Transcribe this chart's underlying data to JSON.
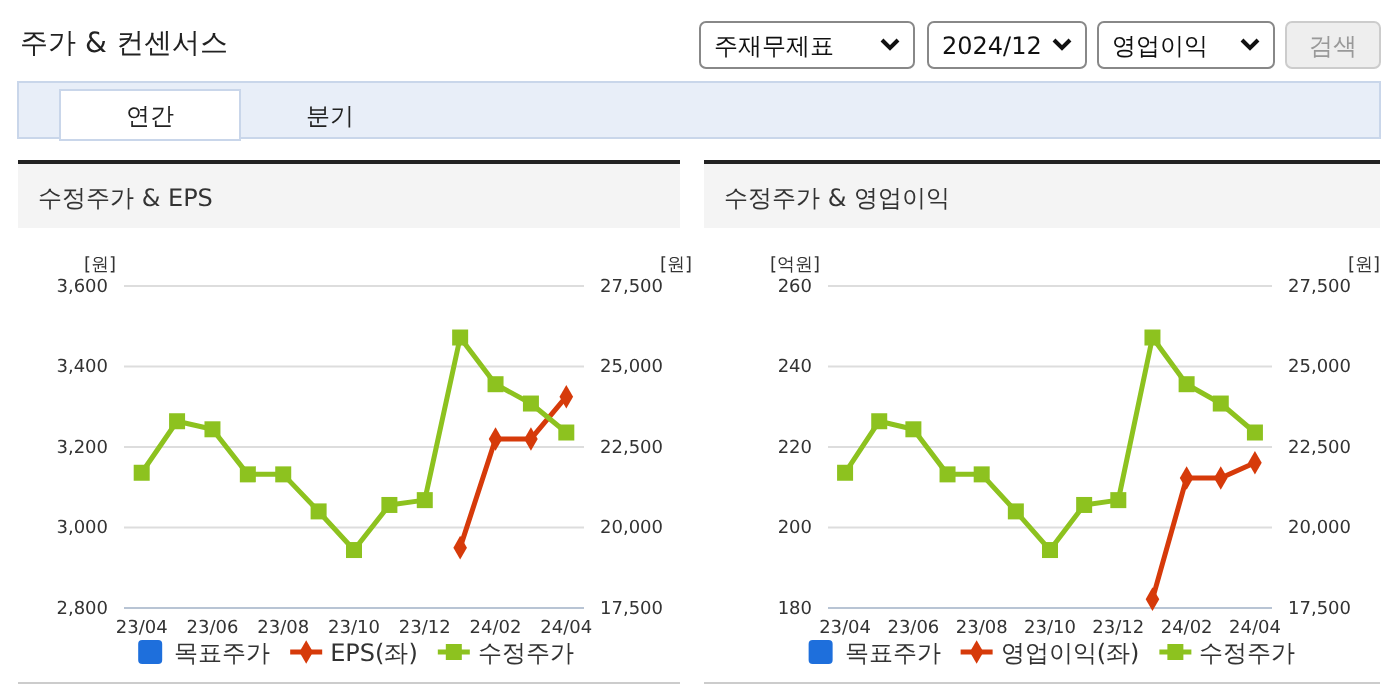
{
  "chart_data": [
    {
      "type": "other",
      "title": "주가 & 컨센서스",
      "annotations": [
        "주재무제표",
        "2024/12",
        "영업이익",
        "검색",
        "연간",
        "분기"
      ]
    },
    {
      "type": "line",
      "title": "수정주가 & EPS",
      "ylabel": "[원]",
      "y2label": "[원]",
      "categories": [
        "23/04",
        null,
        "23/06",
        null,
        "23/08",
        null,
        "23/10",
        null,
        "23/12",
        null,
        "24/02",
        null,
        "24/04"
      ],
      "ylim": [
        2800,
        3600
      ],
      "yticks": [
        {
          "value": 2800,
          "label": "2,800"
        },
        {
          "value": 3000,
          "label": "3,000"
        },
        {
          "value": 3200,
          "label": "3,200"
        },
        {
          "value": 3400,
          "label": "3,400"
        },
        {
          "value": 3600,
          "label": "3,600"
        }
      ],
      "y2lim": [
        17500,
        27500
      ],
      "y2ticks": [
        {
          "value": 17500,
          "label": "17,500"
        },
        {
          "value": 20000,
          "label": "20,000"
        },
        {
          "value": 22500,
          "label": "22,500"
        },
        {
          "value": 25000,
          "label": "25,000"
        },
        {
          "value": 27500,
          "label": "27,500"
        }
      ],
      "grid": "y",
      "legend": "bottom",
      "series": [
        {
          "name": "목표주가",
          "color": "#1e6fdc",
          "axis": "y2",
          "marker": "square",
          "values": [
            null,
            null,
            null,
            null,
            null,
            null,
            null,
            null,
            null,
            null,
            null,
            null,
            null
          ]
        },
        {
          "name": "EPS(좌)",
          "color": "#d63a0a",
          "marker": "diamond",
          "values": [
            null,
            null,
            null,
            null,
            null,
            null,
            null,
            null,
            null,
            2950,
            3220,
            3220,
            3325
          ]
        },
        {
          "name": "수정주가",
          "color": "#8dc21f",
          "axis": "y2",
          "marker": "square",
          "values": [
            21700,
            23300,
            23050,
            21650,
            21650,
            20500,
            19300,
            20700,
            20850,
            25900,
            24450,
            23850,
            22950
          ]
        }
      ]
    },
    {
      "type": "line",
      "title": "수정주가 & 영업이익",
      "ylabel": "[억원]",
      "y2label": "[원]",
      "categories": [
        "23/04",
        null,
        "23/06",
        null,
        "23/08",
        null,
        "23/10",
        null,
        "23/12",
        null,
        "24/02",
        null,
        "24/04"
      ],
      "ylim": [
        180,
        260
      ],
      "yticks": [
        180,
        200,
        220,
        240,
        260
      ],
      "y2lim": [
        17500,
        27500
      ],
      "y2ticks": [
        {
          "value": 17500,
          "label": "17,500"
        },
        {
          "value": 20000,
          "label": "20,000"
        },
        {
          "value": 22500,
          "label": "22,500"
        },
        {
          "value": 25000,
          "label": "25,000"
        },
        {
          "value": 27500,
          "label": "27,500"
        }
      ],
      "grid": "y",
      "legend": "bottom",
      "series": [
        {
          "name": "목표주가",
          "color": "#1e6fdc",
          "axis": "y2",
          "marker": "square",
          "values": [
            null,
            null,
            null,
            null,
            null,
            null,
            null,
            null,
            null,
            null,
            null,
            null,
            null
          ]
        },
        {
          "name": "영업이익(좌)",
          "color": "#d63a0a",
          "marker": "diamond",
          "values": [
            null,
            null,
            null,
            null,
            null,
            null,
            null,
            null,
            null,
            182.2,
            212.3,
            212.3,
            216.1
          ]
        },
        {
          "name": "수정주가",
          "color": "#8dc21f",
          "axis": "y2",
          "marker": "square",
          "values": [
            21700,
            23300,
            23050,
            21650,
            21650,
            20500,
            19300,
            20700,
            20850,
            25900,
            24450,
            23850,
            22950
          ]
        }
      ]
    }
  ]
}
